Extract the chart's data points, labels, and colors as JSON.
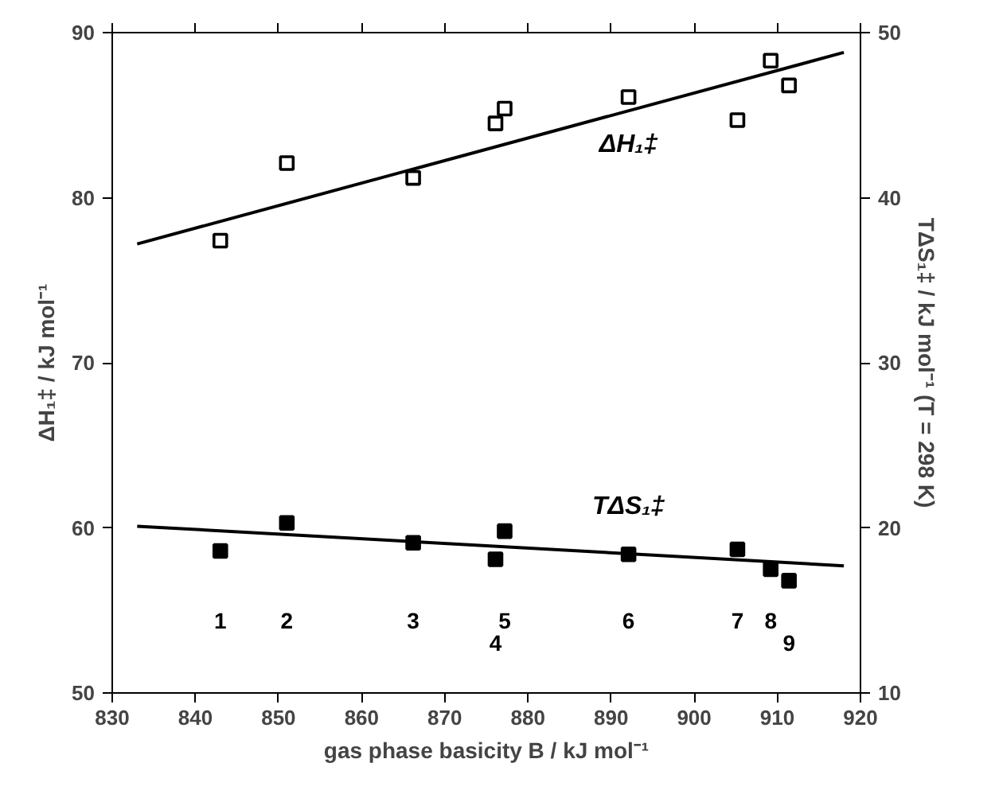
{
  "chart_data": {
    "type": "scatter",
    "xlabel": "gas phase basicity B / kJ mol⁻¹",
    "ylabel": "ΔH₁‡ / kJ mol⁻¹",
    "y2label": "TΔS₁‡ / kJ mol⁻¹ (T = 298 K)",
    "xlim": [
      830,
      920
    ],
    "xticks": [
      830,
      840,
      850,
      860,
      870,
      880,
      890,
      900,
      910,
      920
    ],
    "ylim": [
      50,
      90
    ],
    "yticks": [
      50,
      60,
      70,
      80,
      90
    ],
    "y2lim": [
      10,
      50
    ],
    "y2ticks": [
      10,
      20,
      30,
      40,
      50
    ],
    "grid": false,
    "legend": false,
    "series": [
      {
        "name": "ΔH₁‡",
        "marker": "square",
        "color": "#000000",
        "x": [
          843.0,
          851.0,
          866.2,
          876.1,
          877.2,
          892.1,
          905.2,
          909.2,
          911.4
        ],
        "values": [
          77.4,
          82.1,
          81.2,
          84.5,
          85.4,
          86.1,
          84.7,
          88.3,
          86.8
        ]
      },
      {
        "type": "line",
        "color": "#000000",
        "x": [
          833,
          918
        ],
        "values": [
          77.2,
          88.8
        ]
      },
      {
        "name": "TΔS₁‡",
        "marker": "square",
        "axis": "y2",
        "color": "#000000",
        "x": [
          843.0,
          851.0,
          866.2,
          876.1,
          877.2,
          892.1,
          905.2,
          909.2,
          911.4
        ],
        "values": [
          18.6,
          20.3,
          19.1,
          18.1,
          19.8,
          18.4,
          18.7,
          17.5,
          16.8
        ]
      },
      {
        "type": "line",
        "axis": "y2",
        "color": "#000000",
        "x": [
          833,
          918
        ],
        "values": [
          20.1,
          17.7
        ]
      }
    ],
    "annotations": [
      "1",
      "2",
      "3",
      "4",
      "5",
      "6",
      "7",
      "8",
      "9"
    ]
  }
}
